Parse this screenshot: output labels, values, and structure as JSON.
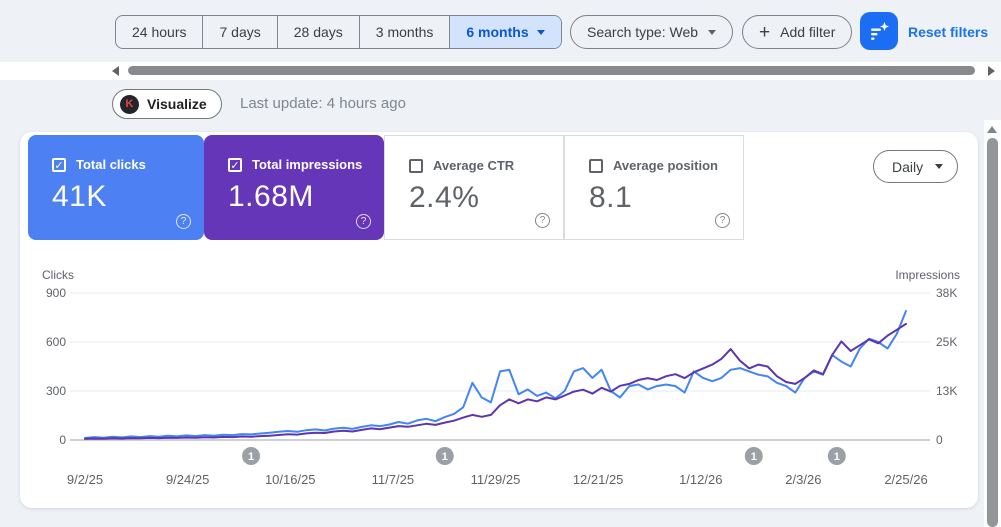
{
  "icons": {
    "check": "✓",
    "help": "?",
    "plus": "+",
    "visualize_badge_letter": "K"
  },
  "toolbar": {
    "date_tabs": [
      {
        "label": "24 hours",
        "selected": false
      },
      {
        "label": "7 days",
        "selected": false
      },
      {
        "label": "28 days",
        "selected": false
      },
      {
        "label": "3 months",
        "selected": false
      },
      {
        "label": "6 months",
        "selected": true,
        "caret": true
      }
    ],
    "search_type_label": "Search type: Web",
    "add_filter_label": "Add filter",
    "reset_filters_label": "Reset filters",
    "filter_sparkle_button_color": "#1b6ef3"
  },
  "visualize_label": "Visualize",
  "last_update": "Last update: 4 hours ago",
  "granularity_label": "Daily",
  "metric_cards": [
    {
      "label": "Total clicks",
      "value": "41K",
      "checked": true,
      "bg": "#4d80f2",
      "fg": "#ffffff"
    },
    {
      "label": "Total impressions",
      "value": "1.68M",
      "checked": true,
      "bg": "#6636b8",
      "fg": "#ffffff"
    },
    {
      "label": "Average CTR",
      "value": "2.4%",
      "checked": false,
      "bg": "#ffffff",
      "fg": "#5f6368"
    },
    {
      "label": "Average position",
      "value": "8.1",
      "checked": false,
      "bg": "#ffffff",
      "fg": "#5f6368"
    }
  ],
  "chart_data": {
    "type": "line",
    "left_axis": {
      "title": "Clicks",
      "max": 900,
      "ticks": [
        "900",
        "600",
        "300",
        "0"
      ]
    },
    "right_axis": {
      "title": "Impressions",
      "max": 38000,
      "ticks": [
        "38K",
        "25K",
        "13K",
        "0"
      ]
    },
    "x_labels": [
      "9/2/25",
      "9/24/25",
      "10/16/25",
      "11/7/25",
      "11/29/25",
      "12/21/25",
      "1/12/26",
      "2/3/26",
      "2/25/26"
    ],
    "days_span": 178,
    "day_step": 2,
    "grid": true,
    "markers": [
      {
        "label": "1",
        "day": 36
      },
      {
        "label": "1",
        "day": 78
      },
      {
        "label": "1",
        "day": 145
      },
      {
        "label": "1",
        "day": 163
      }
    ],
    "series": [
      {
        "name": "Total clicks",
        "axis": "left",
        "color": "#4285f4",
        "values": [
          12,
          18,
          14,
          20,
          16,
          22,
          18,
          24,
          20,
          26,
          22,
          28,
          24,
          30,
          26,
          32,
          30,
          36,
          34,
          40,
          44,
          50,
          55,
          50,
          60,
          65,
          58,
          70,
          75,
          68,
          80,
          90,
          85,
          95,
          110,
          100,
          120,
          130,
          115,
          140,
          160,
          200,
          350,
          260,
          230,
          420,
          430,
          280,
          310,
          270,
          290,
          255,
          300,
          420,
          440,
          380,
          430,
          300,
          260,
          330,
          340,
          310,
          330,
          340,
          330,
          290,
          420,
          380,
          360,
          380,
          430,
          440,
          420,
          400,
          390,
          350,
          330,
          290,
          380,
          420,
          400,
          520,
          480,
          450,
          560,
          620,
          600,
          560,
          650,
          790
        ]
      },
      {
        "name": "Total impressions",
        "axis": "right",
        "color": "#5e35b1",
        "values": [
          300,
          400,
          350,
          450,
          400,
          500,
          450,
          550,
          500,
          600,
          550,
          650,
          600,
          700,
          650,
          800,
          750,
          900,
          850,
          1000,
          1100,
          1300,
          1500,
          1400,
          1700,
          1900,
          1800,
          2200,
          2400,
          2200,
          2600,
          3000,
          2800,
          3200,
          3600,
          3400,
          3800,
          4200,
          3900,
          4500,
          5000,
          5800,
          6500,
          6000,
          6500,
          9000,
          10500,
          9500,
          10500,
          10000,
          11000,
          10500,
          11500,
          12500,
          13000,
          12000,
          13500,
          12500,
          14000,
          14500,
          15500,
          16000,
          15500,
          16500,
          17000,
          16000,
          17500,
          18500,
          19500,
          21000,
          23500,
          20500,
          18500,
          19500,
          19000,
          16500,
          15000,
          14500,
          16000,
          18000,
          17000,
          22000,
          25500,
          23000,
          24500,
          26000,
          25000,
          27000,
          28500,
          30000
        ]
      }
    ]
  }
}
